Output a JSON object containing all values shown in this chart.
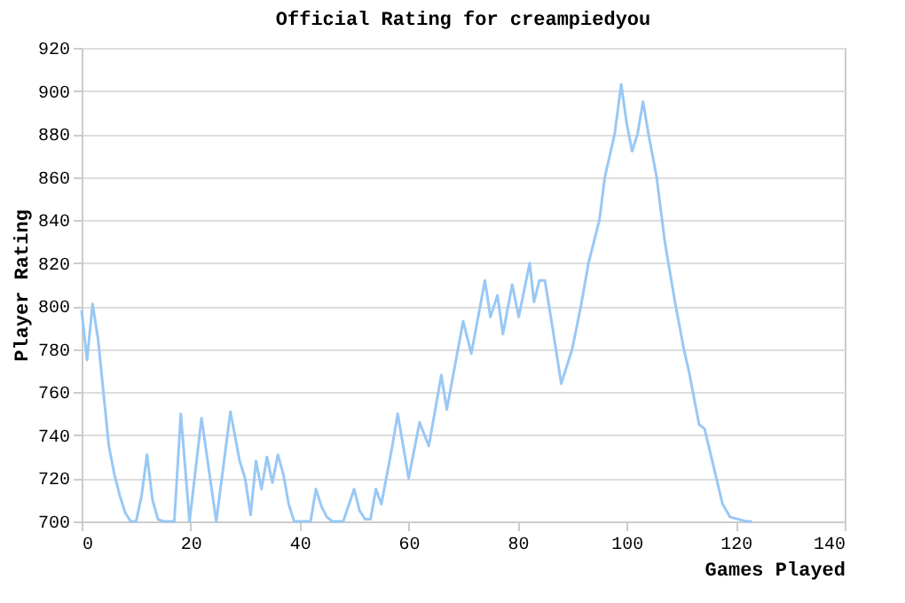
{
  "chart_data": {
    "type": "line",
    "title": "Official Rating for creampiedyou",
    "xlabel": "Games Played",
    "ylabel": "Player Rating",
    "x": [
      0,
      1,
      2,
      3,
      4,
      5,
      6,
      7,
      8,
      9,
      10,
      11,
      12,
      13,
      14,
      15,
      17,
      18.2,
      19.8,
      22,
      24.7,
      27.3,
      29,
      30,
      31,
      32,
      33,
      34,
      35,
      36,
      37,
      38,
      39,
      40,
      42,
      43,
      44,
      45,
      46,
      48,
      50,
      51,
      52,
      53,
      54,
      55,
      57,
      58,
      60,
      62,
      63.7,
      66,
      67,
      70,
      71.5,
      74,
      75,
      76.3,
      77.3,
      79,
      80.2,
      82.2,
      83,
      84,
      85,
      86.4,
      88,
      90,
      91.6,
      93,
      95,
      96,
      97.8,
      99,
      100,
      101,
      102,
      103,
      104,
      105.5,
      107,
      109,
      110.5,
      111.4,
      113.3,
      114.3,
      116,
      117.6,
      119,
      122,
      123
    ],
    "series": [
      {
        "color": "#99c8f5",
        "values": [
          798,
          775,
          801,
          785,
          760,
          735,
          722,
          712,
          704,
          700,
          700,
          712,
          731,
          710,
          701,
          700,
          700,
          750,
          700,
          748,
          700,
          751,
          728,
          720,
          703,
          728,
          715,
          730,
          718,
          731,
          722,
          708,
          700,
          700,
          700,
          715,
          707,
          702,
          700,
          700,
          715,
          705,
          701,
          701,
          715,
          708,
          735,
          750,
          720,
          746,
          735,
          768,
          752,
          793,
          778,
          812,
          795,
          805,
          787,
          810,
          795,
          820,
          802,
          812,
          812,
          790,
          764,
          780,
          800,
          820,
          840,
          860,
          880,
          903,
          885,
          872,
          880,
          895,
          880,
          860,
          830,
          800,
          780,
          770,
          745,
          743,
          725,
          708,
          702,
          700,
          700
        ]
      }
    ],
    "xlim": [
      0,
      140
    ],
    "xticks": [
      0,
      20,
      40,
      60,
      80,
      100,
      120,
      140
    ],
    "ylim": [
      700,
      920
    ],
    "yticks": [
      700,
      720,
      740,
      760,
      780,
      800,
      820,
      840,
      860,
      880,
      900,
      920
    ],
    "grid": "y"
  }
}
